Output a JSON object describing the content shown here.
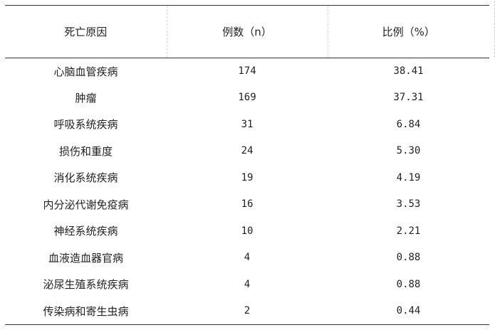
{
  "table": {
    "headers": [
      "死亡原因",
      "例数（n）",
      "比例（%）"
    ],
    "rows": [
      [
        "心脑血管疾病",
        "174",
        "38.41"
      ],
      [
        "肿瘤",
        "169",
        "37.31"
      ],
      [
        "呼吸系统疾病",
        "31",
        "6.84"
      ],
      [
        "损伤和重度",
        "24",
        "5.30"
      ],
      [
        "消化系统疾病",
        "19",
        "4.19"
      ],
      [
        "内分泌代谢免疫病",
        "16",
        "3.53"
      ],
      [
        "神经系统疾病",
        "10",
        "2.21"
      ],
      [
        "血液造血器官病",
        "4",
        "0.88"
      ],
      [
        "泌尿生殖系统疾病",
        "4",
        "0.88"
      ],
      [
        "传染病和寄生虫病",
        "2",
        "0.44"
      ]
    ]
  }
}
